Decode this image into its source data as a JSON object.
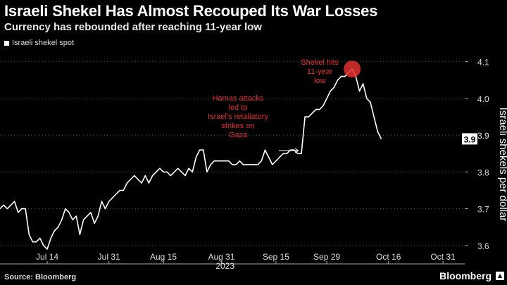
{
  "header": {
    "title": "Israeli Shekel Has Almost Recouped Its War Losses",
    "subtitle": "Currency has rebounded after reaching 11-year low"
  },
  "footer": {
    "source": "Source: Bloomberg",
    "brand": "Bloomberg"
  },
  "colors": {
    "background": "#000000",
    "line": "#ffffff",
    "annotation": "#e0302f",
    "grid": "#555555"
  },
  "chart_data": {
    "type": "line",
    "title": "Israeli Shekel Has Almost Recouped Its War Losses",
    "subtitle": "Currency has rebounded after reaching 11-year low",
    "xlabel": "2023",
    "ylabel": "Israeli shekels per dollar",
    "y_axis_side": "right",
    "ylim": [
      3.55,
      4.13
    ],
    "yticks": [
      3.6,
      3.7,
      3.8,
      3.9,
      4.0,
      4.1
    ],
    "ytick_labels": [
      "3.6",
      "3.7",
      "3.8",
      "3.9",
      "4.0",
      "4.1"
    ],
    "xlim": [
      "2023-07-01",
      "2023-11-06"
    ],
    "xticks": [
      "2023-07-14",
      "2023-07-31",
      "2023-08-15",
      "2023-08-31",
      "2023-09-15",
      "2023-09-29",
      "2023-10-16",
      "2023-10-31"
    ],
    "xtick_labels": [
      "Jul 14",
      "Jul 31",
      "Aug 15",
      "Aug 31",
      "Sep 15",
      "Sep 29",
      "Oct 16",
      "Oct 31"
    ],
    "grid": "horizontal dotted",
    "legend": "top-left",
    "last_value_label": "3.9",
    "series": [
      {
        "name": "Israeli shekel spot",
        "points": [
          [
            "2023-07-01",
            3.7
          ],
          [
            "2023-07-02",
            3.71
          ],
          [
            "2023-07-03",
            3.7
          ],
          [
            "2023-07-04",
            3.71
          ],
          [
            "2023-07-05",
            3.72
          ],
          [
            "2023-07-06",
            3.69
          ],
          [
            "2023-07-07",
            3.7
          ],
          [
            "2023-07-08",
            3.7
          ],
          [
            "2023-07-09",
            3.63
          ],
          [
            "2023-07-10",
            3.61
          ],
          [
            "2023-07-11",
            3.61
          ],
          [
            "2023-07-12",
            3.62
          ],
          [
            "2023-07-13",
            3.6
          ],
          [
            "2023-07-14",
            3.59
          ],
          [
            "2023-07-15",
            3.62
          ],
          [
            "2023-07-16",
            3.64
          ],
          [
            "2023-07-17",
            3.65
          ],
          [
            "2023-07-18",
            3.67
          ],
          [
            "2023-07-19",
            3.7
          ],
          [
            "2023-07-20",
            3.69
          ],
          [
            "2023-07-21",
            3.67
          ],
          [
            "2023-07-22",
            3.68
          ],
          [
            "2023-07-23",
            3.63
          ],
          [
            "2023-07-24",
            3.67
          ],
          [
            "2023-07-25",
            3.68
          ],
          [
            "2023-07-26",
            3.69
          ],
          [
            "2023-07-27",
            3.66
          ],
          [
            "2023-07-28",
            3.68
          ],
          [
            "2023-07-29",
            3.72
          ],
          [
            "2023-07-30",
            3.7
          ],
          [
            "2023-07-31",
            3.72
          ],
          [
            "2023-08-01",
            3.73
          ],
          [
            "2023-08-02",
            3.74
          ],
          [
            "2023-08-03",
            3.75
          ],
          [
            "2023-08-04",
            3.75
          ],
          [
            "2023-08-05",
            3.77
          ],
          [
            "2023-08-06",
            3.78
          ],
          [
            "2023-08-07",
            3.79
          ],
          [
            "2023-08-08",
            3.78
          ],
          [
            "2023-08-09",
            3.77
          ],
          [
            "2023-08-10",
            3.79
          ],
          [
            "2023-08-11",
            3.77
          ],
          [
            "2023-08-12",
            3.79
          ],
          [
            "2023-08-13",
            3.8
          ],
          [
            "2023-08-14",
            3.81
          ],
          [
            "2023-08-15",
            3.8
          ],
          [
            "2023-08-16",
            3.8
          ],
          [
            "2023-08-17",
            3.79
          ],
          [
            "2023-08-18",
            3.8
          ],
          [
            "2023-08-19",
            3.81
          ],
          [
            "2023-08-20",
            3.8
          ],
          [
            "2023-08-21",
            3.79
          ],
          [
            "2023-08-22",
            3.81
          ],
          [
            "2023-08-23",
            3.8
          ],
          [
            "2023-08-24",
            3.84
          ],
          [
            "2023-08-25",
            3.86
          ],
          [
            "2023-08-26",
            3.86
          ],
          [
            "2023-08-27",
            3.8
          ],
          [
            "2023-08-28",
            3.82
          ],
          [
            "2023-08-29",
            3.83
          ],
          [
            "2023-08-30",
            3.83
          ],
          [
            "2023-08-31",
            3.83
          ],
          [
            "2023-09-01",
            3.83
          ],
          [
            "2023-09-02",
            3.83
          ],
          [
            "2023-09-03",
            3.82
          ],
          [
            "2023-09-04",
            3.82
          ],
          [
            "2023-09-05",
            3.83
          ],
          [
            "2023-09-06",
            3.82
          ],
          [
            "2023-09-07",
            3.82
          ],
          [
            "2023-09-08",
            3.82
          ],
          [
            "2023-09-09",
            3.82
          ],
          [
            "2023-09-10",
            3.82
          ],
          [
            "2023-09-11",
            3.83
          ],
          [
            "2023-09-12",
            3.86
          ],
          [
            "2023-09-13",
            3.84
          ],
          [
            "2023-09-14",
            3.82
          ],
          [
            "2023-09-15",
            3.83
          ],
          [
            "2023-09-16",
            3.84
          ],
          [
            "2023-09-17",
            3.85
          ],
          [
            "2023-09-18",
            3.85
          ],
          [
            "2023-09-19",
            3.86
          ],
          [
            "2023-09-20",
            3.86
          ],
          [
            "2023-09-21",
            3.85
          ],
          [
            "2023-09-22",
            3.85
          ],
          [
            "2023-09-23",
            3.95
          ],
          [
            "2023-09-24",
            3.95
          ],
          [
            "2023-09-25",
            3.96
          ],
          [
            "2023-09-26",
            3.97
          ],
          [
            "2023-09-27",
            3.97
          ],
          [
            "2023-09-28",
            3.98
          ],
          [
            "2023-09-29",
            4.0
          ],
          [
            "2023-09-30",
            4.02
          ],
          [
            "2023-10-01",
            4.03
          ],
          [
            "2023-10-02",
            4.05
          ],
          [
            "2023-10-03",
            4.06
          ],
          [
            "2023-10-04",
            4.06
          ],
          [
            "2023-10-05",
            4.07
          ],
          [
            "2023-10-06",
            4.08
          ],
          [
            "2023-10-07",
            4.06
          ],
          [
            "2023-10-08",
            4.02
          ],
          [
            "2023-10-09",
            4.04
          ],
          [
            "2023-10-10",
            4.0
          ],
          [
            "2023-10-11",
            3.99
          ],
          [
            "2023-10-12",
            3.95
          ],
          [
            "2023-10-13",
            3.91
          ],
          [
            "2023-10-14",
            3.89
          ]
        ]
      }
    ],
    "annotations": [
      {
        "kind": "text-arrow",
        "lines": [
          "Hamas attacks",
          "led to",
          "Israel's retaliatory",
          "strikes on",
          "Gaza"
        ],
        "date": "2023-09-22",
        "value": 3.86
      },
      {
        "kind": "circle-label",
        "lines": [
          "Shekel hits",
          "11-year",
          "low"
        ],
        "date": "2023-10-06",
        "value": 4.08
      }
    ]
  }
}
